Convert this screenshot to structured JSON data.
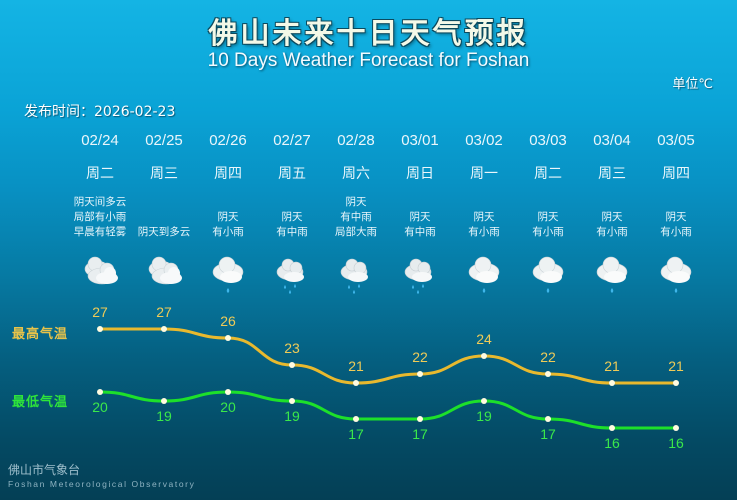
{
  "header": {
    "title_cn": "佛山未来十日天气预报",
    "title_en": "10 Days Weather Forecast for Foshan",
    "unit": "单位℃",
    "publish_time": "发布时间：2026-02-23"
  },
  "days": [
    {
      "date": "02/24",
      "weekday": "周二",
      "desc": [
        "阴天间多云",
        "局部有小雨",
        "早晨有轻雾"
      ],
      "icon": "cloudy-icon",
      "high": 27,
      "low": 20
    },
    {
      "date": "02/25",
      "weekday": "周三",
      "desc": [
        "阴天到多云"
      ],
      "icon": "cloudy-icon",
      "high": 27,
      "low": 19
    },
    {
      "date": "02/26",
      "weekday": "周四",
      "desc": [
        "阴天",
        "有小雨"
      ],
      "icon": "light-rain-icon",
      "high": 26,
      "low": 20
    },
    {
      "date": "02/27",
      "weekday": "周五",
      "desc": [
        "阴天",
        "有中雨"
      ],
      "icon": "moderate-rain-icon",
      "high": 23,
      "low": 19
    },
    {
      "date": "02/28",
      "weekday": "周六",
      "desc": [
        "阴天",
        "有中雨",
        "局部大雨"
      ],
      "icon": "moderate-rain-icon",
      "high": 21,
      "low": 17
    },
    {
      "date": "03/01",
      "weekday": "周日",
      "desc": [
        "阴天",
        "有中雨"
      ],
      "icon": "moderate-rain-icon",
      "high": 22,
      "low": 17
    },
    {
      "date": "03/02",
      "weekday": "周一",
      "desc": [
        "阴天",
        "有小雨"
      ],
      "icon": "light-rain-icon",
      "high": 24,
      "low": 19
    },
    {
      "date": "03/03",
      "weekday": "周二",
      "desc": [
        "阴天",
        "有小雨"
      ],
      "icon": "light-rain-icon",
      "high": 22,
      "low": 17
    },
    {
      "date": "03/04",
      "weekday": "周三",
      "desc": [
        "阴天",
        "有小雨"
      ],
      "icon": "light-rain-icon",
      "high": 21,
      "low": 16
    },
    {
      "date": "03/05",
      "weekday": "周四",
      "desc": [
        "阴天",
        "有小雨"
      ],
      "icon": "light-rain-icon",
      "high": 21,
      "low": 16
    }
  ],
  "legend": {
    "high_label": "最高气温",
    "low_label": "最低气温"
  },
  "colors": {
    "high_line": "#e8b92e",
    "low_line": "#1de02a",
    "point": "#fffbe0"
  },
  "footer": {
    "org_cn": "佛山市气象台",
    "org_en": "Foshan Meteorological Observatory"
  },
  "chart_data": {
    "type": "line",
    "title": "佛山未来十日天气预报 / 10 Days Weather Forecast for Foshan",
    "categories": [
      "02/24",
      "02/25",
      "02/26",
      "02/27",
      "02/28",
      "03/01",
      "03/02",
      "03/03",
      "03/04",
      "03/05"
    ],
    "series": [
      {
        "name": "最高气温",
        "values": [
          27,
          27,
          26,
          23,
          21,
          22,
          24,
          22,
          21,
          21
        ]
      },
      {
        "name": "最低气温",
        "values": [
          20,
          19,
          20,
          19,
          17,
          17,
          19,
          17,
          16,
          16
        ]
      }
    ],
    "xlabel": "",
    "ylabel": "单位℃",
    "grid": false,
    "legend_position": "left"
  }
}
